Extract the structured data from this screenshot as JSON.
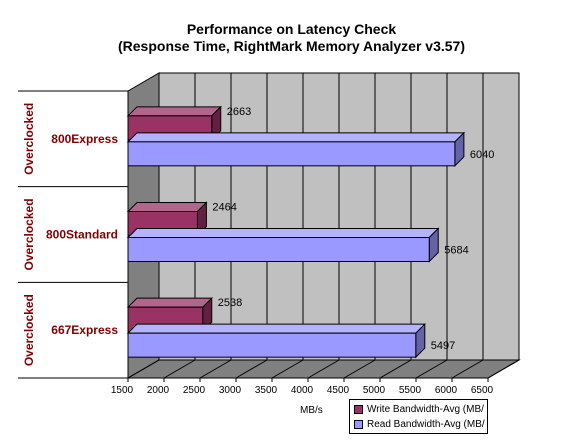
{
  "chart_data": {
    "type": "bar",
    "orientation": "horizontal",
    "title": "Performance on Latency Check",
    "subtitle": "(Response Time, RightMark Memory Analyzer v3.57)",
    "xlabel": "MB/s",
    "xlim": [
      1500,
      6500
    ],
    "xticks": [
      "1500",
      "2000",
      "2500",
      "3000",
      "3500",
      "4000",
      "4500",
      "5000",
      "5500",
      "6000",
      "6500"
    ],
    "grid": true,
    "legend_position": "bottom-right",
    "groups": [
      {
        "outer": "Overclocked",
        "inner": "800Express"
      },
      {
        "outer": "Overclocked",
        "inner": "800Standard"
      },
      {
        "outer": "Overclocked",
        "inner": "667Express"
      }
    ],
    "series": [
      {
        "name": "Write Bandwidth-Avg (MB/",
        "color": "#993366",
        "values": [
          2663,
          2464,
          2538
        ]
      },
      {
        "name": "Read Bandwidth-Avg (MB/",
        "color": "#9999ff",
        "values": [
          6040,
          5684,
          5497
        ]
      }
    ],
    "colors": {
      "wall": "#c0c0c0",
      "floor": "#808080",
      "category_text": "#800000"
    }
  }
}
